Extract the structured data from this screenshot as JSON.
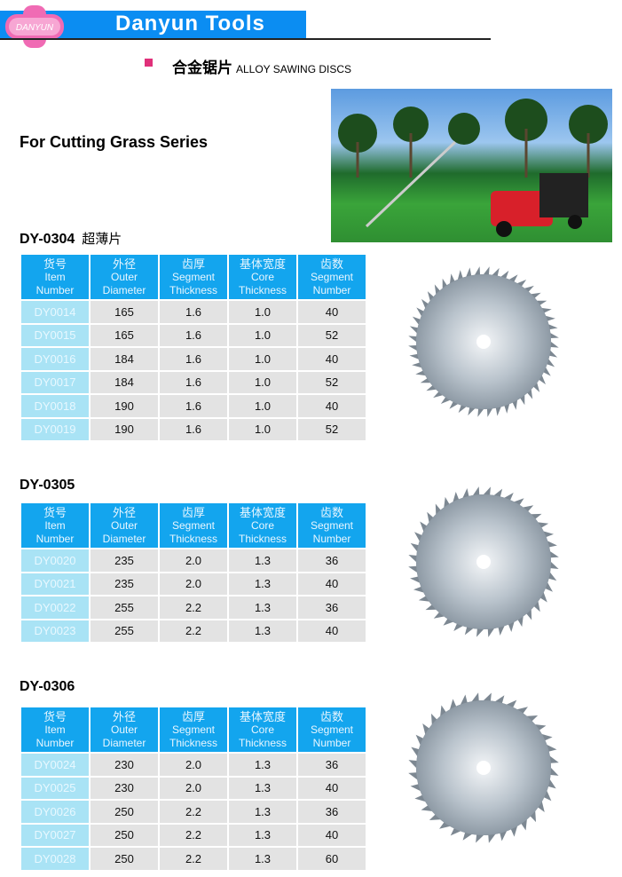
{
  "header": {
    "logo_text": "DANYUN",
    "brand": "Danyun Tools",
    "accent": "#0b8df2",
    "logo_color": "#f06bb4"
  },
  "subtitle": {
    "cn": "合金锯片",
    "en": "ALLOY SAWING DISCS"
  },
  "series_title": "For Cutting  Grass Series",
  "columns": [
    {
      "cn": "货号",
      "en1": "Item",
      "en2": "Number"
    },
    {
      "cn": "外径",
      "en1": "Outer",
      "en2": "Diameter"
    },
    {
      "cn": "齿厚",
      "en1": "Segment",
      "en2": "Thickness"
    },
    {
      "cn": "基体宽度",
      "en1": "Core",
      "en2": "Thickness"
    },
    {
      "cn": "齿数",
      "en1": "Segment",
      "en2": "Number"
    }
  ],
  "models": [
    {
      "name": "DY-0304",
      "cn": "超薄片",
      "rows": [
        [
          "DY0014",
          "165",
          "1.6",
          "1.0",
          "40"
        ],
        [
          "DY0015",
          "165",
          "1.6",
          "1.0",
          "52"
        ],
        [
          "DY0016",
          "184",
          "1.6",
          "1.0",
          "40"
        ],
        [
          "DY0017",
          "184",
          "1.6",
          "1.0",
          "52"
        ],
        [
          "DY0018",
          "190",
          "1.6",
          "1.0",
          "40"
        ],
        [
          "DY0019",
          "190",
          "1.6",
          "1.0",
          "52"
        ]
      ]
    },
    {
      "name": "DY-0305",
      "cn": "",
      "rows": [
        [
          "DY0020",
          "235",
          "2.0",
          "1.3",
          "36"
        ],
        [
          "DY0021",
          "235",
          "2.0",
          "1.3",
          "40"
        ],
        [
          "DY0022",
          "255",
          "2.2",
          "1.3",
          "36"
        ],
        [
          "DY0023",
          "255",
          "2.2",
          "1.3",
          "40"
        ]
      ]
    },
    {
      "name": "DY-0306",
      "cn": "",
      "rows": [
        [
          "DY0024",
          "230",
          "2.0",
          "1.3",
          "36"
        ],
        [
          "DY0025",
          "230",
          "2.0",
          "1.3",
          "40"
        ],
        [
          "DY0026",
          "250",
          "2.2",
          "1.3",
          "36"
        ],
        [
          "DY0027",
          "250",
          "2.2",
          "1.3",
          "40"
        ],
        [
          "DY0028",
          "250",
          "2.2",
          "1.3",
          "60"
        ]
      ]
    }
  ]
}
